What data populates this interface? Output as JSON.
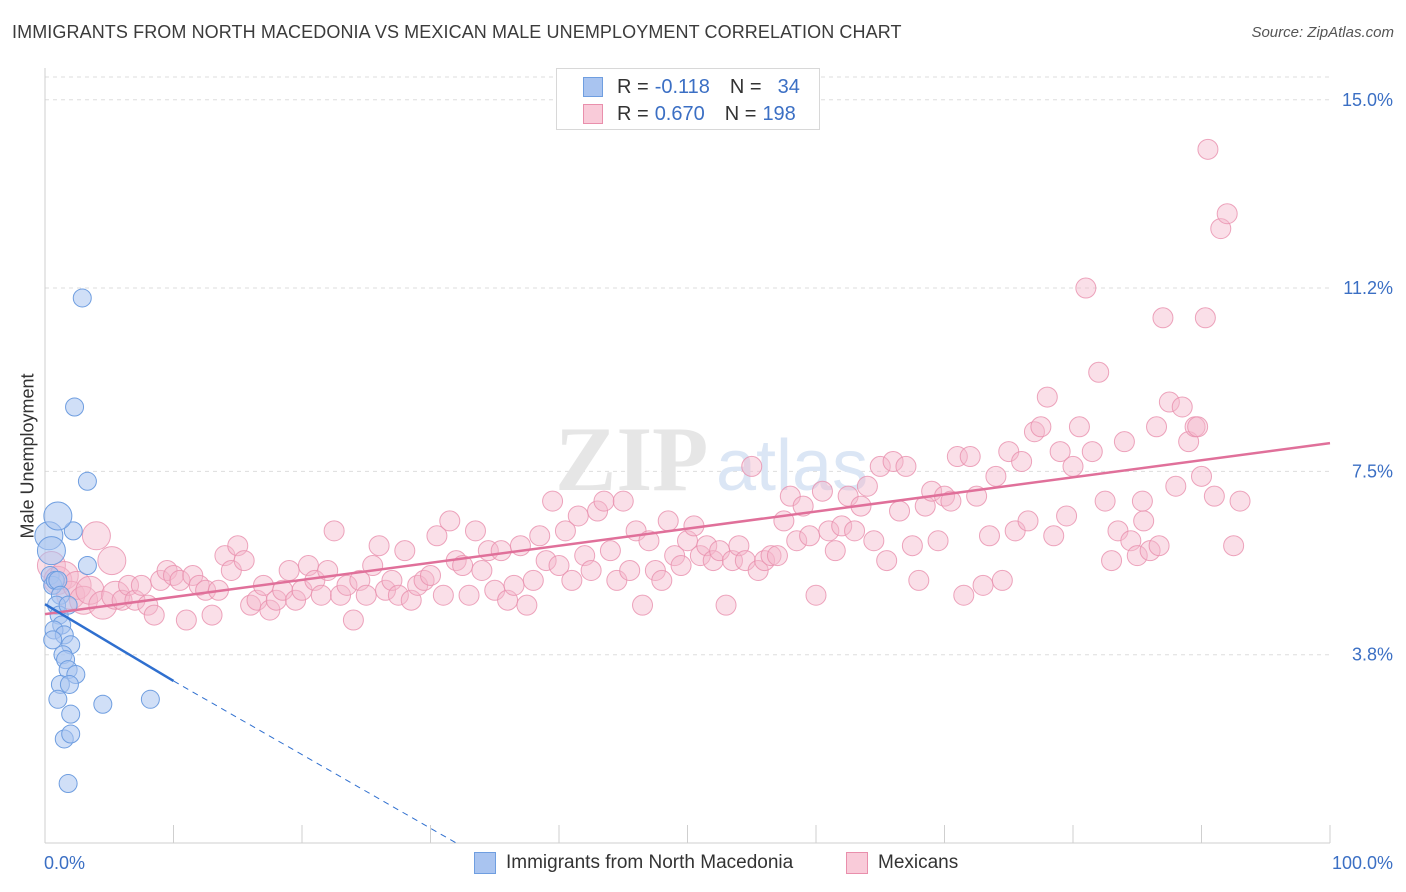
{
  "header": {
    "title": "IMMIGRANTS FROM NORTH MACEDONIA VS MEXICAN MALE UNEMPLOYMENT CORRELATION CHART",
    "source": "Source: ZipAtlas.com"
  },
  "legend": {
    "rows": [
      {
        "r_label": "R =",
        "r_value": "-0.118",
        "n_label": "N =",
        "n_value": "34"
      },
      {
        "r_label": "R =",
        "r_value": "0.670",
        "n_label": "N =",
        "n_value": "198"
      }
    ]
  },
  "watermark": {
    "zip": "ZIP",
    "atlas": "atlas"
  },
  "colors": {
    "blue_fill": "#a9c4f0",
    "blue_stroke": "#6f9ee0",
    "blue_line": "#2f6fcf",
    "pink_fill": "#f5b8cb",
    "pink_stroke": "#e98fac",
    "pink_line": "#e0709a",
    "tick_label": "#3b6fc4",
    "grid": "#dddddd"
  },
  "chart_data": {
    "type": "scatter",
    "title": "IMMIGRANTS FROM NORTH MACEDONIA VS MEXICAN MALE UNEMPLOYMENT CORRELATION CHART",
    "ylabel": "Male Unemployment",
    "xlim": [
      0,
      100
    ],
    "ylim": [
      0,
      15.5
    ],
    "x_tick_labels": [
      "0.0%",
      "100.0%"
    ],
    "y_ticks": [
      3.8,
      7.5,
      11.2,
      15.0
    ],
    "y_tick_labels": [
      "3.8%",
      "7.5%",
      "11.2%",
      "15.0%"
    ],
    "grid": "horizontal dashed",
    "legend_position": "top-center and bottom",
    "series": [
      {
        "name": "Immigrants from North Macedonia",
        "r": -0.118,
        "n": 34,
        "trend": {
          "x": [
            0,
            10
          ],
          "y": [
            4.82,
            3.27
          ],
          "dashed_extension_to": [
            32,
            0
          ]
        },
        "points": [
          [
            0.3,
            6.2
          ],
          [
            0.5,
            5.9
          ],
          [
            0.4,
            5.4
          ],
          [
            0.6,
            5.2
          ],
          [
            0.8,
            5.3
          ],
          [
            1.0,
            5.3
          ],
          [
            1.2,
            5.0
          ],
          [
            0.9,
            4.8
          ],
          [
            1.1,
            4.6
          ],
          [
            1.3,
            4.4
          ],
          [
            0.7,
            4.3
          ],
          [
            1.5,
            4.2
          ],
          [
            0.6,
            4.1
          ],
          [
            2.0,
            4.0
          ],
          [
            1.4,
            3.8
          ],
          [
            1.6,
            3.7
          ],
          [
            1.8,
            3.5
          ],
          [
            2.4,
            3.4
          ],
          [
            1.2,
            3.2
          ],
          [
            1.9,
            3.2
          ],
          [
            1.0,
            2.9
          ],
          [
            4.5,
            2.8
          ],
          [
            2.0,
            2.6
          ],
          [
            1.5,
            2.1
          ],
          [
            2.0,
            2.2
          ],
          [
            1.8,
            1.2
          ],
          [
            2.2,
            6.3
          ],
          [
            3.3,
            5.6
          ],
          [
            1.8,
            4.8
          ],
          [
            2.9,
            11.0
          ],
          [
            2.3,
            8.8
          ],
          [
            3.3,
            7.3
          ],
          [
            8.2,
            2.9
          ],
          [
            1.0,
            6.6
          ]
        ]
      },
      {
        "name": "Mexicans",
        "r": 0.67,
        "n": 198,
        "trend": {
          "x": [
            0,
            100
          ],
          "y": [
            4.62,
            8.07
          ]
        },
        "points": [
          [
            0.5,
            5.6
          ],
          [
            1.0,
            5.3
          ],
          [
            1.5,
            5.4
          ],
          [
            2.0,
            5.0
          ],
          [
            2.5,
            5.2
          ],
          [
            3.0,
            4.9
          ],
          [
            3.5,
            5.1
          ],
          [
            4.0,
            6.2
          ],
          [
            4.5,
            4.8
          ],
          [
            5.2,
            5.7
          ],
          [
            5.5,
            5.0
          ],
          [
            6.0,
            4.9
          ],
          [
            6.5,
            5.2
          ],
          [
            7.0,
            4.9
          ],
          [
            7.5,
            5.2
          ],
          [
            8.0,
            4.8
          ],
          [
            8.5,
            4.6
          ],
          [
            9.0,
            5.3
          ],
          [
            9.5,
            5.5
          ],
          [
            10.0,
            5.4
          ],
          [
            10.5,
            5.3
          ],
          [
            11.0,
            4.5
          ],
          [
            11.5,
            5.4
          ],
          [
            12.0,
            5.2
          ],
          [
            12.5,
            5.1
          ],
          [
            13.0,
            4.6
          ],
          [
            13.5,
            5.1
          ],
          [
            14.0,
            5.8
          ],
          [
            14.5,
            5.5
          ],
          [
            15.0,
            6.0
          ],
          [
            15.5,
            5.7
          ],
          [
            16.0,
            4.8
          ],
          [
            16.5,
            4.9
          ],
          [
            17.0,
            5.2
          ],
          [
            17.5,
            4.7
          ],
          [
            18.0,
            4.9
          ],
          [
            18.5,
            5.1
          ],
          [
            19.0,
            5.5
          ],
          [
            19.5,
            4.9
          ],
          [
            20.0,
            5.1
          ],
          [
            20.5,
            5.6
          ],
          [
            21.0,
            5.3
          ],
          [
            21.5,
            5.0
          ],
          [
            22.0,
            5.5
          ],
          [
            22.5,
            6.3
          ],
          [
            23.0,
            5.0
          ],
          [
            23.5,
            5.2
          ],
          [
            24.0,
            4.5
          ],
          [
            24.5,
            5.3
          ],
          [
            25.0,
            5.0
          ],
          [
            25.5,
            5.6
          ],
          [
            26.0,
            6.0
          ],
          [
            26.5,
            5.1
          ],
          [
            27.0,
            5.3
          ],
          [
            27.5,
            5.0
          ],
          [
            28.0,
            5.9
          ],
          [
            28.5,
            4.9
          ],
          [
            29.0,
            5.2
          ],
          [
            29.5,
            5.3
          ],
          [
            30.0,
            5.4
          ],
          [
            30.5,
            6.2
          ],
          [
            31.0,
            5.0
          ],
          [
            31.5,
            6.5
          ],
          [
            32.0,
            5.7
          ],
          [
            32.5,
            5.6
          ],
          [
            33.0,
            5.0
          ],
          [
            33.5,
            6.3
          ],
          [
            34.0,
            5.5
          ],
          [
            34.5,
            5.9
          ],
          [
            35.0,
            5.1
          ],
          [
            35.5,
            5.9
          ],
          [
            36.0,
            4.9
          ],
          [
            36.5,
            5.2
          ],
          [
            37.0,
            6.0
          ],
          [
            37.5,
            4.8
          ],
          [
            38.0,
            5.3
          ],
          [
            38.5,
            6.2
          ],
          [
            39.0,
            5.7
          ],
          [
            39.5,
            6.9
          ],
          [
            40.0,
            5.6
          ],
          [
            40.5,
            6.3
          ],
          [
            41.0,
            5.3
          ],
          [
            41.5,
            6.6
          ],
          [
            42.0,
            5.8
          ],
          [
            42.5,
            5.5
          ],
          [
            43.0,
            6.7
          ],
          [
            43.5,
            6.9
          ],
          [
            44.0,
            5.9
          ],
          [
            44.5,
            5.3
          ],
          [
            45.0,
            6.9
          ],
          [
            45.5,
            5.5
          ],
          [
            46.0,
            6.3
          ],
          [
            46.5,
            4.8
          ],
          [
            47.0,
            6.1
          ],
          [
            47.5,
            5.5
          ],
          [
            48.0,
            5.3
          ],
          [
            48.5,
            6.5
          ],
          [
            49.0,
            5.8
          ],
          [
            49.5,
            5.6
          ],
          [
            50.0,
            6.1
          ],
          [
            50.5,
            6.4
          ],
          [
            51.0,
            5.8
          ],
          [
            51.5,
            6.0
          ],
          [
            52.0,
            5.7
          ],
          [
            52.5,
            5.9
          ],
          [
            53.0,
            4.8
          ],
          [
            53.5,
            5.7
          ],
          [
            54.0,
            6.0
          ],
          [
            54.5,
            5.7
          ],
          [
            55.0,
            7.6
          ],
          [
            55.5,
            5.5
          ],
          [
            56.0,
            5.7
          ],
          [
            56.5,
            5.8
          ],
          [
            57.0,
            5.8
          ],
          [
            57.5,
            6.5
          ],
          [
            58.0,
            7.0
          ],
          [
            58.5,
            6.1
          ],
          [
            59.0,
            6.8
          ],
          [
            59.5,
            6.2
          ],
          [
            60.0,
            5.0
          ],
          [
            60.5,
            7.1
          ],
          [
            61.0,
            6.3
          ],
          [
            61.5,
            5.9
          ],
          [
            62.0,
            6.4
          ],
          [
            62.5,
            7.0
          ],
          [
            63.0,
            6.3
          ],
          [
            63.5,
            6.8
          ],
          [
            64.0,
            7.2
          ],
          [
            64.5,
            6.1
          ],
          [
            65.0,
            7.6
          ],
          [
            65.5,
            5.7
          ],
          [
            66.0,
            7.7
          ],
          [
            66.5,
            6.7
          ],
          [
            67.0,
            7.6
          ],
          [
            67.5,
            6.0
          ],
          [
            68.0,
            5.3
          ],
          [
            68.5,
            6.8
          ],
          [
            69.0,
            7.1
          ],
          [
            69.5,
            6.1
          ],
          [
            70.0,
            7.0
          ],
          [
            70.5,
            6.9
          ],
          [
            71.0,
            7.8
          ],
          [
            71.5,
            5.0
          ],
          [
            72.0,
            7.8
          ],
          [
            72.5,
            7.0
          ],
          [
            73.0,
            5.2
          ],
          [
            73.5,
            6.2
          ],
          [
            74.0,
            7.4
          ],
          [
            74.5,
            5.3
          ],
          [
            75.0,
            7.9
          ],
          [
            75.5,
            6.3
          ],
          [
            76.0,
            7.7
          ],
          [
            76.5,
            6.5
          ],
          [
            77.0,
            8.3
          ],
          [
            77.5,
            8.4
          ],
          [
            78.0,
            9.0
          ],
          [
            78.5,
            6.2
          ],
          [
            79.0,
            7.9
          ],
          [
            79.5,
            6.6
          ],
          [
            80.0,
            7.6
          ],
          [
            80.5,
            8.4
          ],
          [
            81.0,
            11.2
          ],
          [
            81.5,
            7.9
          ],
          [
            82.0,
            9.5
          ],
          [
            82.5,
            6.9
          ],
          [
            83.0,
            5.7
          ],
          [
            83.5,
            6.3
          ],
          [
            84.0,
            8.1
          ],
          [
            84.5,
            6.1
          ],
          [
            85.0,
            5.8
          ],
          [
            85.5,
            6.5
          ],
          [
            86.0,
            5.9
          ],
          [
            86.5,
            8.4
          ],
          [
            87.0,
            10.6
          ],
          [
            87.5,
            8.9
          ],
          [
            88.0,
            7.2
          ],
          [
            88.5,
            8.8
          ],
          [
            89.0,
            8.1
          ],
          [
            89.5,
            8.4
          ],
          [
            90.0,
            7.4
          ],
          [
            90.5,
            14.0
          ],
          [
            91.0,
            7.0
          ],
          [
            91.5,
            12.4
          ],
          [
            92.0,
            12.7
          ],
          [
            92.5,
            6.0
          ],
          [
            93.0,
            6.9
          ],
          [
            90.3,
            10.6
          ],
          [
            89.7,
            8.4
          ],
          [
            86.7,
            6.0
          ],
          [
            85.4,
            6.9
          ]
        ]
      }
    ]
  }
}
